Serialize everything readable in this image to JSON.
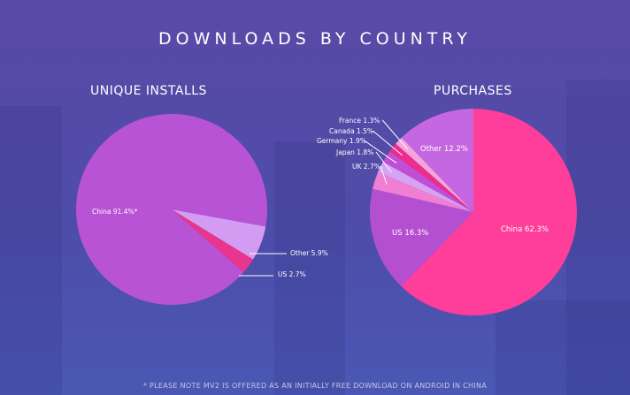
{
  "title": "DOWNLOADS BY COUNTRY",
  "footnote": "* PLEASE NOTE MV2 IS OFFERED AS AN INITIALLY FREE DOWNLOAD ON ANDROID IN CHINA",
  "chart_data": [
    {
      "type": "pie",
      "title": "UNIQUE INSTALLS",
      "slices": [
        {
          "label": "China 91.4%*",
          "value": 91.4,
          "color": "#b953d6"
        },
        {
          "label": "Other 5.9%",
          "value": 5.9,
          "color": "#d39cf2"
        },
        {
          "label": "US 2.7%",
          "value": 2.7,
          "color": "#e8368f"
        }
      ]
    },
    {
      "type": "pie",
      "title": "PURCHASES",
      "slices": [
        {
          "label": "China 62.3%",
          "value": 62.3,
          "color": "#ff3d9a"
        },
        {
          "label": "US 16.3%",
          "value": 16.3,
          "color": "#b44fd2"
        },
        {
          "label": "UK 2.7%",
          "value": 2.7,
          "color": "#f07ed2"
        },
        {
          "label": "Japan 1.8%",
          "value": 1.8,
          "color": "#d6a3f2"
        },
        {
          "label": "Germany 1.9%",
          "value": 1.9,
          "color": "#c04ed6"
        },
        {
          "label": "Canada 1.5%",
          "value": 1.5,
          "color": "#ee2c8c"
        },
        {
          "label": "France 1.3%",
          "value": 1.3,
          "color": "#f6a4dd"
        },
        {
          "label": "Other 12.2%",
          "value": 12.2,
          "color": "#c567e0"
        }
      ]
    }
  ]
}
